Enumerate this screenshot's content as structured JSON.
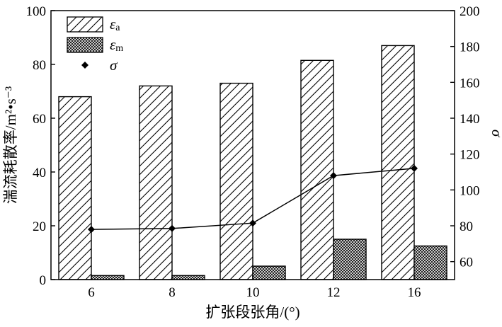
{
  "chart_data": {
    "type": "bar",
    "categories": [
      "6",
      "8",
      "10",
      "12",
      "16"
    ],
    "series": [
      {
        "name": "ε",
        "sub": "a",
        "axis": "left",
        "kind": "bar",
        "pattern": "hatch",
        "values": [
          68,
          72,
          73,
          81.5,
          87
        ]
      },
      {
        "name": "ε",
        "sub": "m",
        "axis": "left",
        "kind": "bar",
        "pattern": "crosshatch",
        "values": [
          1.5,
          1.5,
          5,
          15,
          12.5
        ]
      },
      {
        "name": "σ",
        "sub": "",
        "axis": "right",
        "kind": "line",
        "marker": "diamond",
        "values": [
          78,
          78.5,
          81.5,
          108,
          112
        ]
      }
    ],
    "xlabel": "扩张段张角/(°)",
    "ylabel": "湍流耗散率/m²•s⁻³",
    "y2label": "σ",
    "ylim": [
      0,
      100
    ],
    "yticks": [
      0,
      20,
      40,
      60,
      80,
      100
    ],
    "y2lim": [
      50,
      200
    ],
    "y2ticks": [
      60,
      80,
      100,
      120,
      140,
      160,
      180,
      200
    ],
    "legend_position": "top-left",
    "grid": false,
    "colors": {
      "ink": "#000000",
      "background": "#ffffff"
    }
  }
}
